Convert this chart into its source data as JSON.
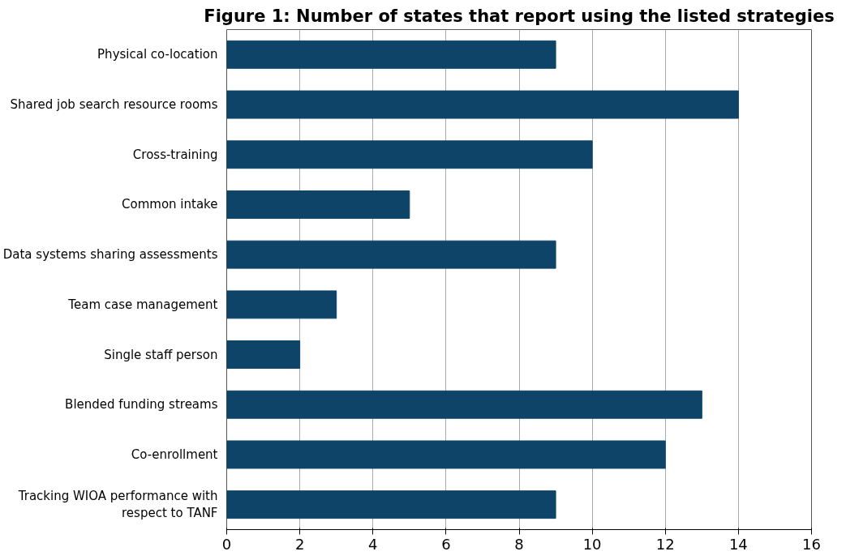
{
  "chart_data": {
    "type": "bar",
    "orientation": "horizontal",
    "title": "Figure 1: Number of states that report using the listed strategies",
    "categories": [
      "Physical co-location",
      "Shared job search resource rooms",
      "Cross-training",
      "Common intake",
      "Data systems sharing assessments",
      "Team case management",
      "Single staff person",
      "Blended funding streams",
      "Co-enrollment",
      "Tracking WIOA performance with respect to TANF"
    ],
    "values": [
      9,
      14,
      10,
      5,
      9,
      3,
      2,
      13,
      12,
      9
    ],
    "color": "#0f4469",
    "xlim": [
      0,
      16
    ],
    "xticks": [
      0,
      2,
      4,
      6,
      8,
      10,
      12,
      14,
      16
    ],
    "grid": "x"
  }
}
